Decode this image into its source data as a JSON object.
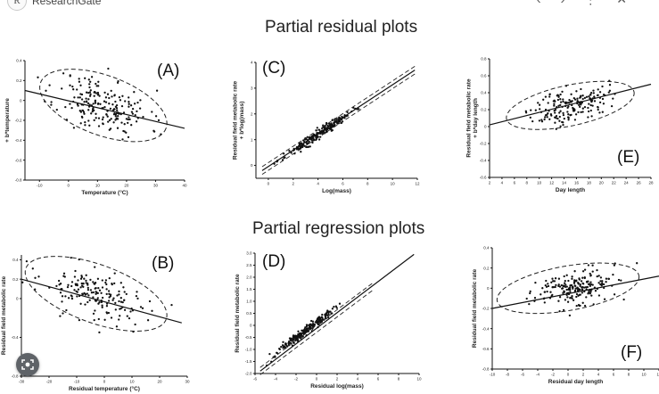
{
  "header": {
    "logo_letter": "R",
    "site_name": "ResearchGate",
    "nav_icons": [
      "chevron-left-icon",
      "chevron-right-icon",
      "more-icon",
      "close-icon"
    ]
  },
  "sections": {
    "residual_title": "Partial residual plots",
    "regression_title": "Partial regression plots"
  },
  "chart_data": [
    {
      "id": "A",
      "type": "scatter",
      "letter": "(A)",
      "xlabel": "Temperature (°C)",
      "ylabel": "+ b*temperature",
      "xlim": [
        -15,
        40
      ],
      "ylim": [
        -0.8,
        0.4
      ],
      "xticks": [
        -10,
        0,
        10,
        20,
        30,
        40
      ],
      "yticks": [
        -0.8,
        -0.6,
        -0.4,
        -0.2,
        0,
        0.2,
        0.4
      ],
      "ytick_labels": [
        "-0.8",
        "-0.6",
        "-0.4",
        "-0.2",
        "0",
        "0.2",
        "0.4"
      ],
      "fit": {
        "x": [
          -15,
          40
        ],
        "y": [
          0.1,
          -0.28
        ]
      },
      "ellipse": {
        "cx": 12,
        "cy": -0.05,
        "rx": 23,
        "ry": 0.3,
        "angle": 20
      },
      "points": {
        "n": 200,
        "seed": 11,
        "center": [
          12,
          -0.05
        ],
        "sx": 8,
        "sy": 0.14,
        "slope": -0.007
      }
    },
    {
      "id": "C",
      "type": "scatter",
      "letter": "(C)",
      "xlabel": "Log(mass)",
      "ylabel": "Residual field metabolic rate\n+ b*log(mass)",
      "xlim": [
        -1,
        12
      ],
      "ylim": [
        -0.5,
        4
      ],
      "xticks": [
        0,
        2,
        4,
        6,
        8,
        10,
        12
      ],
      "yticks": [
        0,
        1,
        2,
        3,
        4
      ],
      "ytick_labels": [
        "0",
        "1",
        "2",
        "3",
        "4"
      ],
      "fit": {
        "x": [
          -0.5,
          11.8
        ],
        "y": [
          -0.2,
          3.7
        ]
      },
      "bands": [
        {
          "x": [
            -0.5,
            11.8
          ],
          "y": [
            -0.05,
            3.85
          ]
        },
        {
          "x": [
            -0.5,
            11.8
          ],
          "y": [
            -0.35,
            3.55
          ]
        }
      ],
      "points": {
        "n": 200,
        "seed": 23,
        "center": [
          4,
          1.2
        ],
        "sx": 1.3,
        "sy": 0.09,
        "slope": 0.317
      }
    },
    {
      "id": "E",
      "type": "scatter",
      "letter": "(E)",
      "xlabel": "Day length",
      "ylabel": "Residual field metabolic rate\n+ b*day length",
      "xlim": [
        2,
        28
      ],
      "ylim": [
        -0.6,
        0.8
      ],
      "xticks": [
        2,
        4,
        6,
        8,
        10,
        12,
        14,
        16,
        18,
        20,
        22,
        24,
        26,
        28
      ],
      "yticks": [
        -0.6,
        -0.4,
        -0.2,
        0,
        0.2,
        0.4,
        0.6,
        0.8
      ],
      "ytick_labels": [
        "-0.6",
        "-0.4",
        "-0.2",
        "0",
        "0.2",
        "0.4",
        "0.6",
        "0.8"
      ],
      "fit": {
        "x": [
          2,
          28
        ],
        "y": [
          0.02,
          0.5
        ]
      },
      "ellipse": {
        "cx": 15,
        "cy": 0.25,
        "rx": 10.5,
        "ry": 0.24,
        "angle": -12
      },
      "points": {
        "n": 180,
        "seed": 37,
        "center": [
          15,
          0.25
        ],
        "sx": 3,
        "sy": 0.1,
        "slope": 0.018
      }
    },
    {
      "id": "B",
      "type": "scatter",
      "letter": "(B)",
      "xlabel": "Residual temperature (°C)",
      "ylabel": "Residual field metabolic rate",
      "xlim": [
        -30,
        30
      ],
      "ylim": [
        -0.8,
        0.45
      ],
      "xticks": [
        -30,
        -20,
        -10,
        0,
        10,
        20,
        30
      ],
      "yticks": [
        -0.8,
        -0.4,
        0,
        0.2,
        0.4
      ],
      "ytick_labels": [
        "-0.8",
        "-0.4",
        "0",
        "0.2",
        "0.4"
      ],
      "fit": {
        "x": [
          -30,
          28
        ],
        "y": [
          0.2,
          -0.25
        ]
      },
      "ellipse": {
        "cx": -3,
        "cy": 0.05,
        "rx": 27,
        "ry": 0.3,
        "angle": 20
      },
      "points": {
        "n": 180,
        "seed": 53,
        "center": [
          -3,
          0.03
        ],
        "sx": 10,
        "sy": 0.13,
        "slope": -0.0077
      }
    },
    {
      "id": "D",
      "type": "scatter",
      "letter": "(D)",
      "xlabel": "Residual log(mass)",
      "ylabel": "Residual field metabolic rate",
      "xlim": [
        -6,
        10
      ],
      "ylim": [
        -2,
        3
      ],
      "xticks": [
        -6,
        -4,
        -2,
        0,
        2,
        4,
        6,
        8,
        10
      ],
      "yticks": [
        -2,
        -1.5,
        -1,
        -0.5,
        0,
        0.5,
        1,
        1.5,
        2,
        2.5,
        3
      ],
      "ytick_labels": [
        "-2.0",
        "-1.5",
        "-1.0",
        "-0.5",
        "0",
        "0.5",
        "1.0",
        "1.5",
        "2.0",
        "2.5",
        "3.0"
      ],
      "fit": {
        "x": [
          -5.5,
          9.5
        ],
        "y": [
          -1.9,
          2.95
        ]
      },
      "bands": [
        {
          "x": [
            -5.5,
            5.6
          ],
          "y": [
            -1.75,
            1.8
          ]
        },
        {
          "x": [
            -5.5,
            5.6
          ],
          "y": [
            -2.05,
            1.5
          ]
        }
      ],
      "points": {
        "n": 220,
        "seed": 71,
        "center": [
          -1,
          -0.2
        ],
        "sx": 1.6,
        "sy": 0.1,
        "slope": 0.323
      }
    },
    {
      "id": "F",
      "type": "scatter",
      "letter": "(F)",
      "xlabel": "Residual day length",
      "ylabel": "Residual field metabolic rate",
      "xlim": [
        -10,
        12
      ],
      "ylim": [
        -0.8,
        0.4
      ],
      "xticks": [
        -10,
        -8,
        -6,
        -4,
        -2,
        0,
        2,
        4,
        6,
        8,
        10,
        12
      ],
      "yticks": [
        -0.8,
        -0.6,
        -0.4,
        -0.2,
        0,
        0.2,
        0.4
      ],
      "ytick_labels": [
        "-0.8",
        "-0.6",
        "-0.4",
        "-0.2",
        "0",
        "0.2",
        "0.4"
      ],
      "fit": {
        "x": [
          -10,
          12
        ],
        "y": [
          -0.2,
          0.12
        ]
      },
      "ellipse": {
        "cx": 0,
        "cy": 0,
        "rx": 9.5,
        "ry": 0.22,
        "angle": -10
      },
      "points": {
        "n": 200,
        "seed": 97,
        "center": [
          0.5,
          0
        ],
        "sx": 2.8,
        "sy": 0.09,
        "slope": 0.015
      }
    }
  ],
  "overlay": {
    "lens_icon": "lens-search-icon"
  }
}
